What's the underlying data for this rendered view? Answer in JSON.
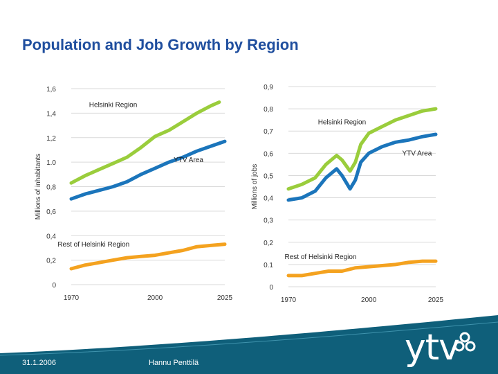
{
  "slide": {
    "title": "Population and Job Growth by Region",
    "footer_date": "31.1.2006",
    "footer_author": "Hannu Penttilä",
    "logo_text": "ytv"
  },
  "colors": {
    "title": "#1f4e9e",
    "helsinki_region": "#9acd3c",
    "ytv_area": "#1b75bb",
    "rest_of_helsinki": "#f4a21f",
    "grid": "#d9d9d9",
    "footer": "#0f5f7a"
  },
  "chart_data": [
    {
      "type": "line",
      "ylabel": "Millions of inhabitants",
      "ylim": [
        0,
        1.6
      ],
      "yticks": [
        0,
        0.2,
        0.4,
        0.6,
        0.8,
        1.0,
        1.2,
        1.4,
        1.6
      ],
      "ytick_labels": [
        "0",
        "0,2",
        "0,4",
        "0,6",
        "0,8",
        "1.0",
        "1,2",
        "1,4",
        "1,6"
      ],
      "xlim": [
        1970,
        2025
      ],
      "xticks": [
        1970,
        2000,
        2025
      ],
      "xtick_labels": [
        "1970",
        "2000",
        "2025"
      ],
      "series": [
        {
          "name": "Helsinki Region",
          "color_key": "helsinki_region",
          "x": [
            1970,
            1975,
            1980,
            1985,
            1990,
            1995,
            2000,
            2005,
            2010,
            2015,
            2020,
            2023
          ],
          "y": [
            0.83,
            0.89,
            0.94,
            0.99,
            1.04,
            1.12,
            1.21,
            1.26,
            1.33,
            1.4,
            1.46,
            1.49
          ],
          "label_at": [
            1985,
            1.45
          ]
        },
        {
          "name": "YTV Area",
          "color_key": "ytv_area",
          "x": [
            1970,
            1975,
            1980,
            1985,
            1990,
            1995,
            2000,
            2005,
            2010,
            2015,
            2020,
            2025
          ],
          "y": [
            0.7,
            0.74,
            0.77,
            0.8,
            0.84,
            0.9,
            0.95,
            1.0,
            1.04,
            1.09,
            1.13,
            1.17
          ],
          "label_at": [
            2012,
            1.0
          ]
        },
        {
          "name": "Rest of Helsinki Region",
          "color_key": "rest_of_helsinki",
          "x": [
            1970,
            1975,
            1980,
            1985,
            1990,
            1995,
            2000,
            2005,
            2010,
            2015,
            2020,
            2025
          ],
          "y": [
            0.13,
            0.16,
            0.18,
            0.2,
            0.22,
            0.23,
            0.24,
            0.26,
            0.28,
            0.31,
            0.32,
            0.33
          ],
          "label_at": [
            1978,
            0.31
          ]
        }
      ]
    },
    {
      "type": "line",
      "ylabel": "Millions of jobs",
      "ylim": [
        0,
        0.9
      ],
      "yticks": [
        0,
        0.1,
        0.2,
        0.3,
        0.4,
        0.5,
        0.6,
        0.7,
        0.8,
        0.9
      ],
      "ytick_labels": [
        "0",
        "0.1",
        "0,2",
        "0,3",
        "0,4",
        "0,5",
        "0,6",
        "0,7",
        "0,8",
        "0,9"
      ],
      "xlim": [
        1970,
        2025
      ],
      "xticks": [
        1970,
        2000,
        2025
      ],
      "xtick_labels": [
        "1970",
        "2000",
        "2025"
      ],
      "series": [
        {
          "name": "Helsinki Region",
          "color_key": "helsinki_region",
          "x": [
            1970,
            1975,
            1980,
            1984,
            1988,
            1990,
            1993,
            1995,
            1997,
            2000,
            2005,
            2010,
            2015,
            2020,
            2025
          ],
          "y": [
            0.44,
            0.46,
            0.49,
            0.55,
            0.59,
            0.57,
            0.52,
            0.56,
            0.64,
            0.69,
            0.72,
            0.75,
            0.77,
            0.79,
            0.8
          ],
          "label_at": [
            1990,
            0.73
          ]
        },
        {
          "name": "YTV Area",
          "color_key": "ytv_area",
          "x": [
            1970,
            1975,
            1980,
            1984,
            1988,
            1990,
            1993,
            1995,
            1997,
            2000,
            2005,
            2010,
            2015,
            2020,
            2025
          ],
          "y": [
            0.39,
            0.4,
            0.43,
            0.49,
            0.53,
            0.5,
            0.44,
            0.48,
            0.56,
            0.6,
            0.63,
            0.65,
            0.66,
            0.675,
            0.685
          ],
          "label_at": [
            2018,
            0.59
          ]
        },
        {
          "name": "Rest of Helsinki Region",
          "color_key": "rest_of_helsinki",
          "x": [
            1970,
            1975,
            1980,
            1985,
            1990,
            1995,
            2000,
            2005,
            2010,
            2015,
            2020,
            2025
          ],
          "y": [
            0.05,
            0.05,
            0.06,
            0.07,
            0.07,
            0.085,
            0.09,
            0.095,
            0.1,
            0.11,
            0.115,
            0.115
          ],
          "label_at": [
            1982,
            0.125
          ]
        }
      ]
    }
  ]
}
